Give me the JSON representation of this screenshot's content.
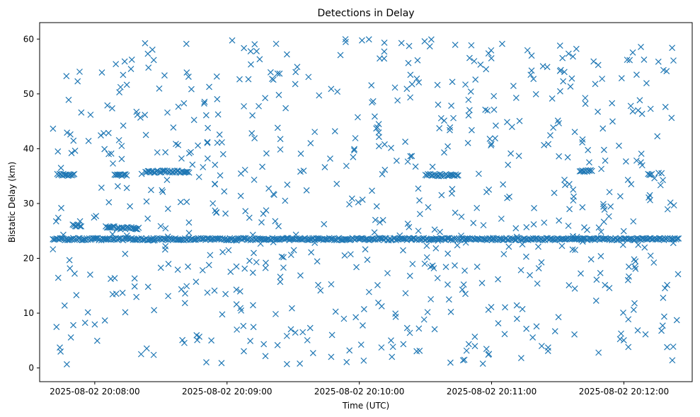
{
  "chart_data": {
    "type": "scatter",
    "title": "Detections in Delay",
    "xlabel": "Time (UTC)",
    "ylabel": "Bistatic Delay (km)",
    "x_start": "2025-08-02 20:07:41",
    "x_end": "2025-08-02 20:12:25",
    "xlim": [
      "2025-08-02 20:07:35",
      "2025-08-02 20:12:31"
    ],
    "ylim": [
      -2.5,
      63
    ],
    "x_ticks": [
      {
        "value": "2025-08-02 20:08:00",
        "label": "2025-08-02 20:08:00"
      },
      {
        "value": "2025-08-02 20:09:00",
        "label": "2025-08-02 20:09:00"
      },
      {
        "value": "2025-08-02 20:10:00",
        "label": "2025-08-02 20:10:00"
      },
      {
        "value": "2025-08-02 20:11:00",
        "label": "2025-08-02 20:11:00"
      },
      {
        "value": "2025-08-02 20:12:00",
        "label": "2025-08-02 20:12:00"
      }
    ],
    "y_ticks": [
      0,
      10,
      20,
      30,
      40,
      50,
      60
    ],
    "grid": false,
    "marker": "x",
    "color": "#1f77b4",
    "bands": [
      {
        "y": 23.5,
        "x_from": "2025-08-02 20:07:41",
        "x_to": "2025-08-02 20:12:25"
      },
      {
        "y": 35.2,
        "x_from": "2025-08-02 20:07:43",
        "x_to": "2025-08-02 20:07:51"
      },
      {
        "y": 26.0,
        "x_from": "2025-08-02 20:07:50",
        "x_to": "2025-08-02 20:07:54"
      },
      {
        "y": 25.8,
        "x_from": "2025-08-02 20:08:05",
        "x_to": "2025-08-02 20:08:09"
      },
      {
        "y": 35.2,
        "x_from": "2025-08-02 20:08:09",
        "x_to": "2025-08-02 20:08:15"
      },
      {
        "y": 25.5,
        "x_from": "2025-08-02 20:08:10",
        "x_to": "2025-08-02 20:08:20"
      },
      {
        "y": 35.8,
        "x_from": "2025-08-02 20:08:23",
        "x_to": "2025-08-02 20:08:43"
      },
      {
        "y": 35.2,
        "x_from": "2025-08-02 20:10:30",
        "x_to": "2025-08-02 20:10:45"
      },
      {
        "y": 35.9,
        "x_from": "2025-08-02 20:11:40",
        "x_to": "2025-08-02 20:11:46"
      },
      {
        "y": 35.2,
        "x_from": "2025-08-02 20:12:11",
        "x_to": "2025-08-02 20:12:13"
      }
    ],
    "scatter_range": {
      "y_min": 0.5,
      "y_max": 60.0,
      "count": 720
    }
  }
}
